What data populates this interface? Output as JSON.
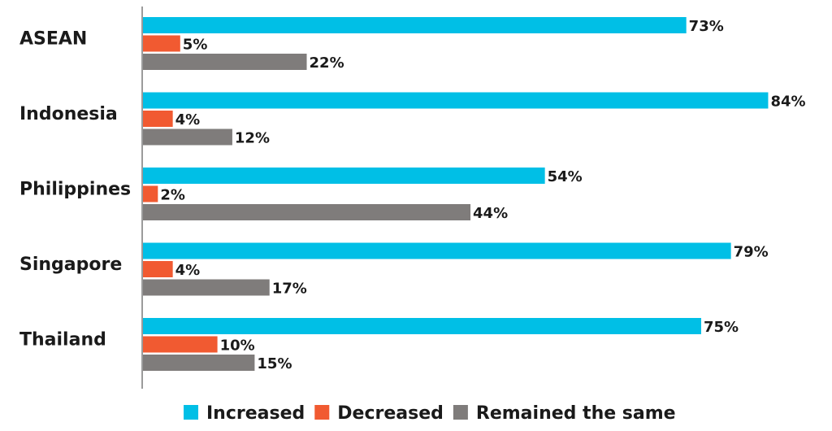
{
  "chart_data": {
    "type": "bar",
    "orientation": "horizontal",
    "categories": [
      "ASEAN",
      "Indonesia",
      "Philippines",
      "Singapore",
      "Thailand"
    ],
    "series": [
      {
        "name": "Increased",
        "color": "#00bfe6",
        "values": [
          73,
          84,
          54,
          79,
          75
        ],
        "labels": [
          "73%",
          "84%",
          "54%",
          "79%",
          "75%"
        ]
      },
      {
        "name": "Decreased",
        "color": "#f15a31",
        "values": [
          5,
          4,
          2,
          4,
          10
        ],
        "labels": [
          "5%",
          "4%",
          "2%",
          "4%",
          "10%"
        ]
      },
      {
        "name": "Remained the same",
        "color": "#7f7c7b",
        "values": [
          22,
          12,
          44,
          17,
          15
        ],
        "labels": [
          "22%",
          "12%",
          "44%",
          "17%",
          "15%"
        ]
      }
    ],
    "value_unit": "%",
    "xlim": [
      0,
      100
    ],
    "grid": false,
    "legend_position": "bottom-center",
    "title": "",
    "xlabel": "",
    "ylabel": ""
  }
}
